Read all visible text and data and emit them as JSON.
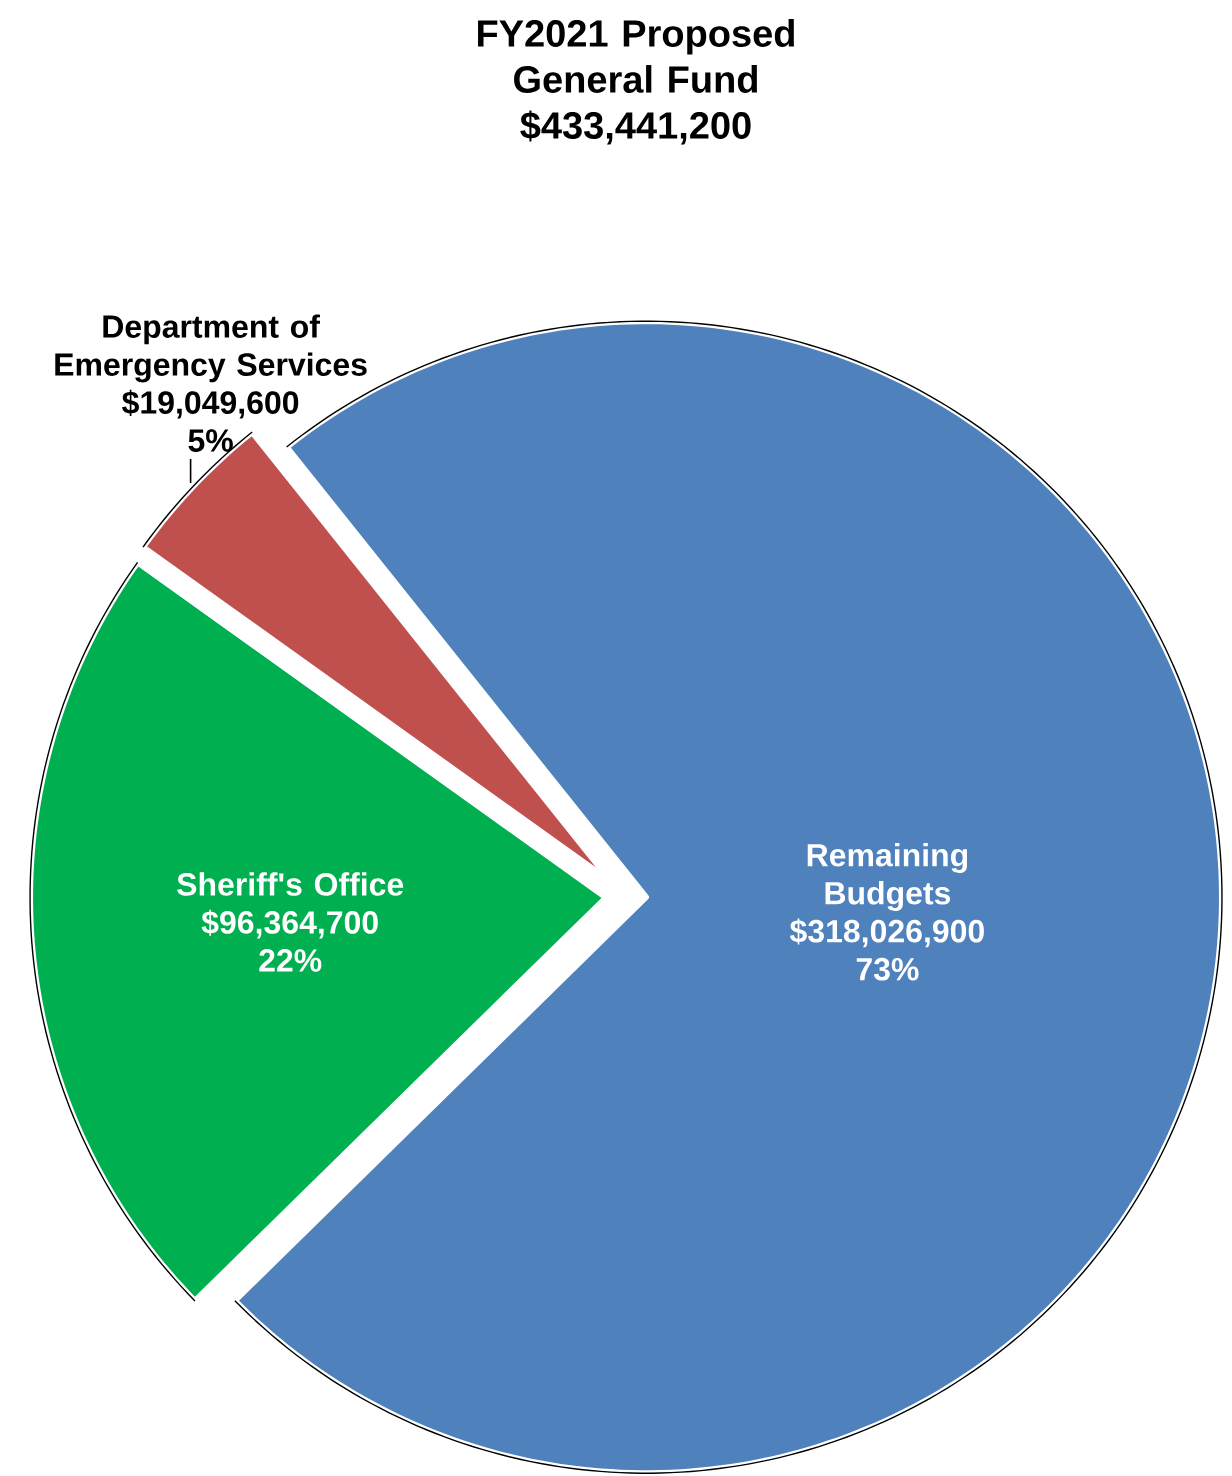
{
  "chart_data": {
    "type": "pie",
    "title": "FY2021 Proposed General Fund",
    "subtitle": "$433,441,200",
    "categories": [
      "Remaining Budgets",
      "Sheriff's Office",
      "Department of Emergency Services"
    ],
    "values": [
      318026900,
      96364700,
      19049600
    ],
    "colors": [
      "#4f81bd",
      "#00b050",
      "#c0504d"
    ],
    "value_labels": [
      "$318,026,900",
      "$96,364,700",
      "$19,049,600"
    ],
    "annotations": [
      "73%",
      "22%",
      "5%"
    ]
  }
}
